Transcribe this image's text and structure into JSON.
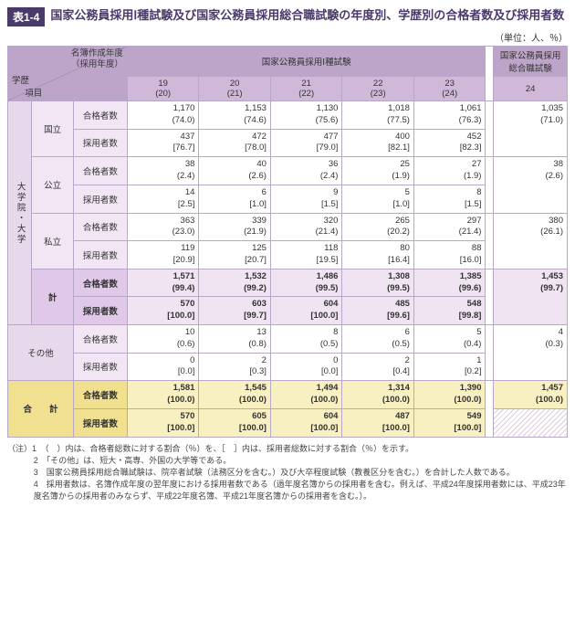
{
  "title_tag": "表1-4",
  "title_text": "国家公務員採用Ⅰ種試験及び国家公務員採用総合職試験の年度別、学歴別の合格者数及び採用者数",
  "unit": "（単位：人、％）",
  "header": {
    "diag_top1": "名簿作成年度",
    "diag_top2": "（採用年度）",
    "diag_left": "学歴",
    "diag_right": "項目",
    "group1": "国家公務員採用Ⅰ種試験",
    "group2": "国家公務員採用総合職試験",
    "years": [
      {
        "a": "19",
        "b": "(20)"
      },
      {
        "a": "20",
        "b": "(21)"
      },
      {
        "a": "21",
        "b": "(22)"
      },
      {
        "a": "22",
        "b": "(23)"
      },
      {
        "a": "23",
        "b": "(24)"
      }
    ],
    "year_ext": "24"
  },
  "labels": {
    "cat_main": "大学院・大学",
    "national": "国立",
    "public": "公立",
    "private": "私立",
    "subtotal": "計",
    "other": "その他",
    "grand": "合　　計",
    "pass": "合格者数",
    "emp": "採用者数"
  },
  "rows": {
    "nat_pass": {
      "v": [
        "1,170",
        "1,153",
        "1,130",
        "1,018",
        "1,061"
      ],
      "p": [
        "(74.0)",
        "(74.6)",
        "(75.6)",
        "(77.5)",
        "(76.3)"
      ],
      "ext_v": "1,035",
      "ext_p": "(71.0)"
    },
    "nat_emp": {
      "v": [
        "437",
        "472",
        "477",
        "400",
        "452"
      ],
      "p": [
        "[76.7]",
        "[78.0]",
        "[79.0]",
        "[82.1]",
        "[82.3]"
      ]
    },
    "pub_pass": {
      "v": [
        "38",
        "40",
        "36",
        "25",
        "27"
      ],
      "p": [
        "(2.4)",
        "(2.6)",
        "(2.4)",
        "(1.9)",
        "(1.9)"
      ],
      "ext_v": "38",
      "ext_p": "(2.6)"
    },
    "pub_emp": {
      "v": [
        "14",
        "6",
        "9",
        "5",
        "8"
      ],
      "p": [
        "[2.5]",
        "[1.0]",
        "[1.5]",
        "[1.0]",
        "[1.5]"
      ]
    },
    "pri_pass": {
      "v": [
        "363",
        "339",
        "320",
        "265",
        "297"
      ],
      "p": [
        "(23.0)",
        "(21.9)",
        "(21.4)",
        "(20.2)",
        "(21.4)"
      ],
      "ext_v": "380",
      "ext_p": "(26.1)"
    },
    "pri_emp": {
      "v": [
        "119",
        "125",
        "118",
        "80",
        "88"
      ],
      "p": [
        "[20.9]",
        "[20.7]",
        "[19.5]",
        "[16.4]",
        "[16.0]"
      ]
    },
    "sub_pass": {
      "v": [
        "1,571",
        "1,532",
        "1,486",
        "1,308",
        "1,385"
      ],
      "p": [
        "(99.4)",
        "(99.2)",
        "(99.5)",
        "(99.5)",
        "(99.6)"
      ],
      "ext_v": "1,453",
      "ext_p": "(99.7)"
    },
    "sub_emp": {
      "v": [
        "570",
        "603",
        "604",
        "485",
        "548"
      ],
      "p": [
        "[100.0]",
        "[99.7]",
        "[100.0]",
        "[99.6]",
        "[99.8]"
      ]
    },
    "oth_pass": {
      "v": [
        "10",
        "13",
        "8",
        "6",
        "5"
      ],
      "p": [
        "(0.6)",
        "(0.8)",
        "(0.5)",
        "(0.5)",
        "(0.4)"
      ],
      "ext_v": "4",
      "ext_p": "(0.3)"
    },
    "oth_emp": {
      "v": [
        "0",
        "2",
        "0",
        "2",
        "1"
      ],
      "p": [
        "[0.0]",
        "[0.3]",
        "[0.0]",
        "[0.4]",
        "[0.2]"
      ]
    },
    "gnd_pass": {
      "v": [
        "1,581",
        "1,545",
        "1,494",
        "1,314",
        "1,390"
      ],
      "p": [
        "(100.0)",
        "(100.0)",
        "(100.0)",
        "(100.0)",
        "(100.0)"
      ],
      "ext_v": "1,457",
      "ext_p": "(100.0)"
    },
    "gnd_emp": {
      "v": [
        "570",
        "605",
        "604",
        "487",
        "549"
      ],
      "p": [
        "[100.0]",
        "[100.0]",
        "[100.0]",
        "[100.0]",
        "[100.0]"
      ]
    }
  },
  "notes": {
    "lead": "（注）",
    "items": [
      "1　（　）内は、合格者総数に対する割合（％）を、［　］内は、採用者総数に対する割合（％）を示す。",
      "2　「その他」は、短大・高専、外国の大学等である。",
      "3　国家公務員採用総合職試験は、院卒者試験（法務区分を含む。）及び大卒程度試験（教養区分を含む。）を合計した人数である。",
      "4　採用者数は、名簿作成年度の翌年度における採用者数である（過年度名簿からの採用者を含む。例えば、平成24年度採用者数には、平成23年度名簿からの採用者のみならず、平成22年度名簿、平成21年度名簿からの採用者を含む。）。"
    ]
  }
}
